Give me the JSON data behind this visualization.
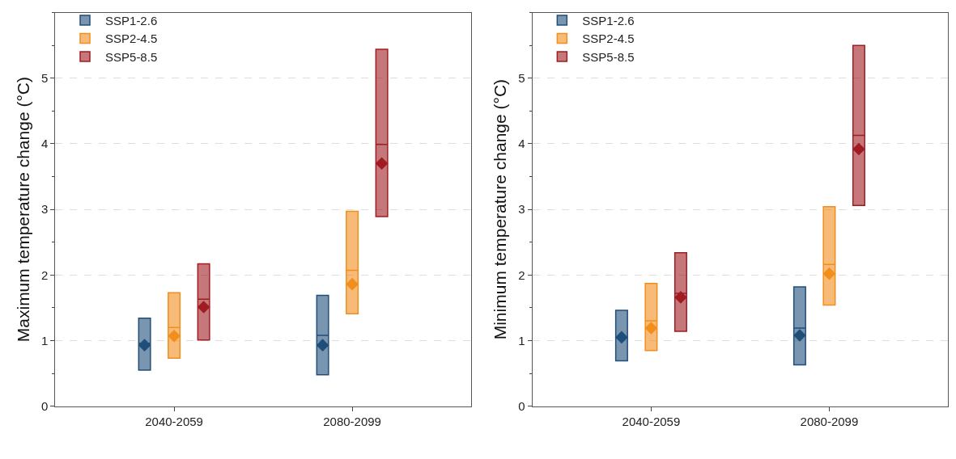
{
  "chart_data": [
    {
      "type": "box",
      "ylabel": "Maximum temperature change (°C)",
      "categories": [
        "2040-2059",
        "2080-2099"
      ],
      "ylim": [
        0,
        6
      ],
      "yticks": [
        0,
        1,
        2,
        3,
        4,
        5
      ],
      "grid": "y",
      "legend": "top left",
      "marker": "diamond",
      "series": [
        {
          "name": "SSP1-2.6",
          "color": "#1f4e79",
          "boxes": [
            {
              "q1": 0.55,
              "median": 0.96,
              "q3": 1.34,
              "mean": 0.93
            },
            {
              "q1": 0.48,
              "median": 1.08,
              "q3": 1.69,
              "mean": 0.93
            }
          ]
        },
        {
          "name": "SSP2-4.5",
          "color": "#f28e1c",
          "boxes": [
            {
              "q1": 0.73,
              "median": 1.2,
              "q3": 1.73,
              "mean": 1.07
            },
            {
              "q1": 1.41,
              "median": 2.07,
              "q3": 2.97,
              "mean": 1.86
            }
          ]
        },
        {
          "name": "SSP5-8.5",
          "color": "#a01c22",
          "boxes": [
            {
              "q1": 1.01,
              "median": 1.63,
              "q3": 2.17,
              "mean": 1.51
            },
            {
              "q1": 2.89,
              "median": 3.99,
              "q3": 5.44,
              "mean": 3.7
            }
          ]
        }
      ]
    },
    {
      "type": "box",
      "ylabel": "Minimum temperature change (°C)",
      "categories": [
        "2040-2059",
        "2080-2099"
      ],
      "ylim": [
        0,
        6
      ],
      "yticks": [
        0,
        1,
        2,
        3,
        4,
        5
      ],
      "grid": "y",
      "legend": "top left",
      "marker": "diamond",
      "series": [
        {
          "name": "SSP1-2.6",
          "color": "#1f4e79",
          "boxes": [
            {
              "q1": 0.69,
              "median": 1.05,
              "q3": 1.46,
              "mean": 1.05
            },
            {
              "q1": 0.63,
              "median": 1.19,
              "q3": 1.82,
              "mean": 1.08
            }
          ]
        },
        {
          "name": "SSP2-4.5",
          "color": "#f28e1c",
          "boxes": [
            {
              "q1": 0.85,
              "median": 1.3,
              "q3": 1.87,
              "mean": 1.19
            },
            {
              "q1": 1.54,
              "median": 2.16,
              "q3": 3.04,
              "mean": 2.02
            }
          ]
        },
        {
          "name": "SSP5-8.5",
          "color": "#a01c22",
          "boxes": [
            {
              "q1": 1.14,
              "median": 1.72,
              "q3": 2.34,
              "mean": 1.66
            },
            {
              "q1": 3.06,
              "median": 4.13,
              "q3": 5.5,
              "mean": 3.92
            }
          ]
        }
      ]
    }
  ]
}
